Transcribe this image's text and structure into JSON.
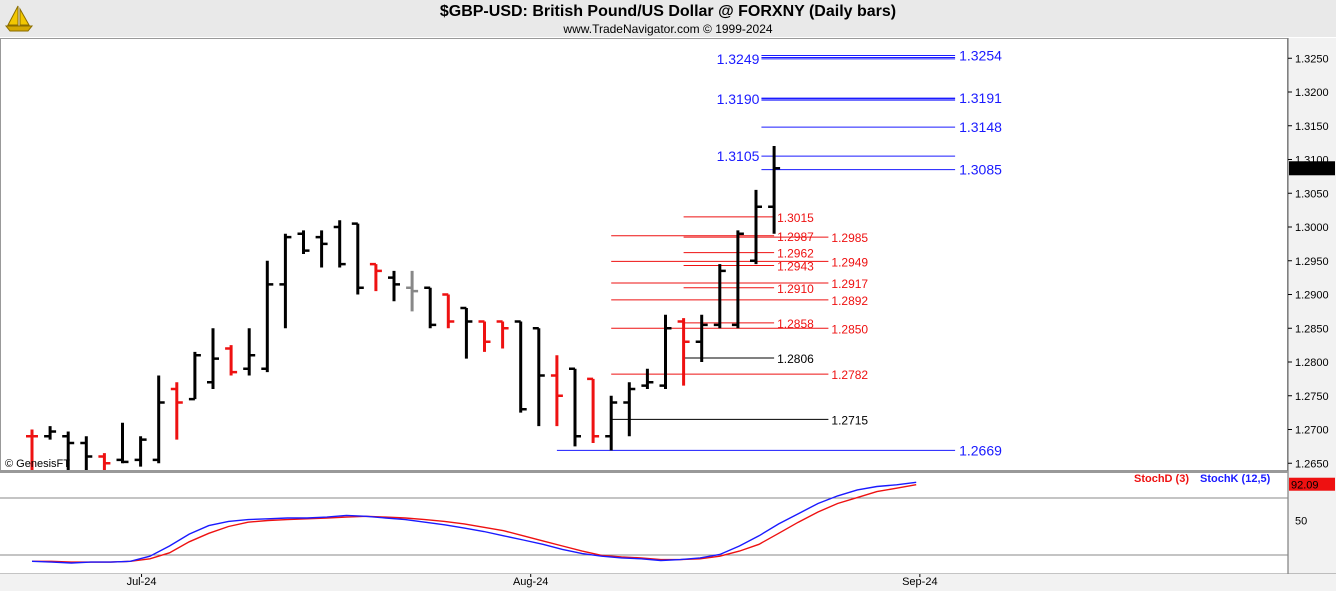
{
  "header": {
    "title": "$GBP-USD:  British Pound/US Dollar @ FORXNY  (Daily bars)",
    "subtitle": "www.TradeNavigator.com © 1999-2024"
  },
  "watermark": "© GenesisFT",
  "colors": {
    "up": "#000000",
    "down": "#ee1111",
    "neutral": "#888888",
    "blue": "#1a1aff",
    "stochD": "#ee1111",
    "stochK": "#1a1aff"
  },
  "chart_data": [
    {
      "type": "ohlc",
      "ylim": [
        1.264,
        1.328
      ],
      "yticks": [
        "1.2650",
        "1.2700",
        "1.2750",
        "1.2800",
        "1.2850",
        "1.2900",
        "1.2950",
        "1.3000",
        "1.3050",
        "1.3100",
        "1.3150",
        "1.3200",
        "1.3250"
      ],
      "xticks": [
        {
          "label": "Jul-24",
          "index": 5.5
        },
        {
          "label": "Aug-24",
          "index": 27
        },
        {
          "label": "Sep-24",
          "index": 48.5
        }
      ],
      "last_price": "1.3087",
      "bars": [
        {
          "o": 1.269,
          "h": 1.27,
          "l": 1.264,
          "c": 1.269,
          "color": "down"
        },
        {
          "o": 1.269,
          "h": 1.2705,
          "l": 1.2685,
          "c": 1.2697,
          "color": "up"
        },
        {
          "o": 1.269,
          "h": 1.2697,
          "l": 1.264,
          "c": 1.268,
          "color": "up"
        },
        {
          "o": 1.268,
          "h": 1.269,
          "l": 1.264,
          "c": 1.266,
          "color": "up"
        },
        {
          "o": 1.266,
          "h": 1.2665,
          "l": 1.264,
          "c": 1.265,
          "color": "down"
        },
        {
          "o": 1.2655,
          "h": 1.271,
          "l": 1.265,
          "c": 1.2652,
          "color": "up"
        },
        {
          "o": 1.2655,
          "h": 1.269,
          "l": 1.2645,
          "c": 1.2685,
          "color": "up"
        },
        {
          "o": 1.2655,
          "h": 1.278,
          "l": 1.265,
          "c": 1.274,
          "color": "up"
        },
        {
          "o": 1.276,
          "h": 1.277,
          "l": 1.2685,
          "c": 1.274,
          "color": "down"
        },
        {
          "o": 1.2745,
          "h": 1.2815,
          "l": 1.2745,
          "c": 1.281,
          "color": "up"
        },
        {
          "o": 1.277,
          "h": 1.285,
          "l": 1.276,
          "c": 1.2805,
          "color": "up"
        },
        {
          "o": 1.282,
          "h": 1.2825,
          "l": 1.278,
          "c": 1.2785,
          "color": "down"
        },
        {
          "o": 1.279,
          "h": 1.285,
          "l": 1.278,
          "c": 1.281,
          "color": "up"
        },
        {
          "o": 1.279,
          "h": 1.295,
          "l": 1.2785,
          "c": 1.2915,
          "color": "up"
        },
        {
          "o": 1.2915,
          "h": 1.299,
          "l": 1.285,
          "c": 1.2985,
          "color": "up"
        },
        {
          "o": 1.299,
          "h": 1.2995,
          "l": 1.296,
          "c": 1.2965,
          "color": "up"
        },
        {
          "o": 1.2985,
          "h": 1.2995,
          "l": 1.294,
          "c": 1.2975,
          "color": "up"
        },
        {
          "o": 1.3,
          "h": 1.301,
          "l": 1.294,
          "c": 1.2945,
          "color": "up"
        },
        {
          "o": 1.3005,
          "h": 1.3005,
          "l": 1.29,
          "c": 1.291,
          "color": "up"
        },
        {
          "o": 1.2945,
          "h": 1.2945,
          "l": 1.2905,
          "c": 1.2935,
          "color": "down"
        },
        {
          "o": 1.2925,
          "h": 1.2935,
          "l": 1.289,
          "c": 1.2915,
          "color": "up"
        },
        {
          "o": 1.291,
          "h": 1.2935,
          "l": 1.2875,
          "c": 1.2905,
          "color": "neutral"
        },
        {
          "o": 1.291,
          "h": 1.291,
          "l": 1.285,
          "c": 1.2855,
          "color": "up"
        },
        {
          "o": 1.29,
          "h": 1.29,
          "l": 1.285,
          "c": 1.286,
          "color": "down"
        },
        {
          "o": 1.288,
          "h": 1.288,
          "l": 1.2805,
          "c": 1.286,
          "color": "up"
        },
        {
          "o": 1.286,
          "h": 1.286,
          "l": 1.2815,
          "c": 1.283,
          "color": "down"
        },
        {
          "o": 1.286,
          "h": 1.286,
          "l": 1.282,
          "c": 1.285,
          "color": "down"
        },
        {
          "o": 1.286,
          "h": 1.286,
          "l": 1.2725,
          "c": 1.273,
          "color": "up"
        },
        {
          "o": 1.285,
          "h": 1.285,
          "l": 1.2705,
          "c": 1.278,
          "color": "up"
        },
        {
          "o": 1.278,
          "h": 1.281,
          "l": 1.2705,
          "c": 1.275,
          "color": "down"
        },
        {
          "o": 1.279,
          "h": 1.279,
          "l": 1.2675,
          "c": 1.269,
          "color": "up"
        },
        {
          "o": 1.2775,
          "h": 1.2775,
          "l": 1.268,
          "c": 1.269,
          "color": "down"
        },
        {
          "o": 1.269,
          "h": 1.275,
          "l": 1.2669,
          "c": 1.274,
          "color": "up"
        },
        {
          "o": 1.274,
          "h": 1.277,
          "l": 1.269,
          "c": 1.276,
          "color": "up"
        },
        {
          "o": 1.2765,
          "h": 1.279,
          "l": 1.276,
          "c": 1.277,
          "color": "up"
        },
        {
          "o": 1.2765,
          "h": 1.287,
          "l": 1.276,
          "c": 1.285,
          "color": "up"
        },
        {
          "o": 1.286,
          "h": 1.2865,
          "l": 1.2765,
          "c": 1.283,
          "color": "down"
        },
        {
          "o": 1.283,
          "h": 1.287,
          "l": 1.28,
          "c": 1.2855,
          "color": "up"
        },
        {
          "o": 1.2855,
          "h": 1.2945,
          "l": 1.285,
          "c": 1.2935,
          "color": "up"
        },
        {
          "o": 1.2855,
          "h": 1.2995,
          "l": 1.285,
          "c": 1.299,
          "color": "up"
        },
        {
          "o": 1.295,
          "h": 1.3055,
          "l": 1.2945,
          "c": 1.303,
          "color": "up"
        },
        {
          "o": 1.303,
          "h": 1.312,
          "l": 1.299,
          "c": 1.3087,
          "color": "up"
        }
      ],
      "levels": [
        {
          "value": 1.3254,
          "label": "1.3254",
          "color": "blue",
          "from": 40.3,
          "to": 51.0,
          "side": "right",
          "big": true,
          "double": true
        },
        {
          "value": 1.3249,
          "label": "1.3249",
          "color": "blue",
          "from": 40.3,
          "to": 51.0,
          "side": "left",
          "big": true,
          "double": false
        },
        {
          "value": 1.3191,
          "label": "1.3191",
          "color": "blue",
          "from": 40.3,
          "to": 51.0,
          "side": "right",
          "big": true,
          "double": true
        },
        {
          "value": 1.319,
          "label": "1.3190",
          "color": "blue",
          "from": 40.3,
          "to": 51.0,
          "side": "left",
          "big": true,
          "double": false
        },
        {
          "value": 1.3148,
          "label": "1.3148",
          "color": "blue",
          "from": 40.3,
          "to": 51.0,
          "side": "right",
          "big": true,
          "double": false
        },
        {
          "value": 1.3105,
          "label": "1.3105",
          "color": "blue",
          "from": 40.3,
          "to": 51.0,
          "side": "left",
          "big": true,
          "double": false
        },
        {
          "value": 1.3085,
          "label": "1.3085",
          "color": "blue",
          "from": 40.3,
          "to": 51.0,
          "side": "right",
          "big": true,
          "double": false
        },
        {
          "value": 1.3015,
          "label": "1.3015",
          "color": "down",
          "from": 36.0,
          "to": 41.0,
          "side": "right",
          "big": false,
          "double": false
        },
        {
          "value": 1.2987,
          "label": "1.2987",
          "color": "down",
          "from": 32.0,
          "to": 41.0,
          "side": "right",
          "big": false,
          "double": false
        },
        {
          "value": 1.2985,
          "label": "1.2985",
          "color": "down",
          "from": 36.0,
          "to": 44.0,
          "side": "right",
          "big": false,
          "double": false
        },
        {
          "value": 1.2962,
          "label": "1.2962",
          "color": "down",
          "from": 36.0,
          "to": 41.0,
          "side": "right",
          "big": false,
          "double": false
        },
        {
          "value": 1.2949,
          "label": "1.2949",
          "color": "down",
          "from": 32.0,
          "to": 44.0,
          "side": "right",
          "big": false,
          "double": false
        },
        {
          "value": 1.2943,
          "label": "1.2943",
          "color": "down",
          "from": 36.0,
          "to": 41.0,
          "side": "right",
          "big": false,
          "double": false
        },
        {
          "value": 1.2917,
          "label": "1.2917",
          "color": "down",
          "from": 32.0,
          "to": 44.0,
          "side": "right",
          "big": false,
          "double": false
        },
        {
          "value": 1.291,
          "label": "1.2910",
          "color": "down",
          "from": 36.0,
          "to": 41.0,
          "side": "right",
          "big": false,
          "double": false
        },
        {
          "value": 1.2892,
          "label": "1.2892",
          "color": "down",
          "from": 32.0,
          "to": 44.0,
          "side": "right",
          "big": false,
          "double": false
        },
        {
          "value": 1.2858,
          "label": "1.2858",
          "color": "down",
          "from": 36.0,
          "to": 41.0,
          "side": "right",
          "big": false,
          "double": false
        },
        {
          "value": 1.285,
          "label": "1.2850",
          "color": "down",
          "from": 32.0,
          "to": 44.0,
          "side": "right",
          "big": false,
          "double": false
        },
        {
          "value": 1.2806,
          "label": "1.2806",
          "color": "up",
          "from": 36.0,
          "to": 41.0,
          "side": "right",
          "big": false,
          "double": false
        },
        {
          "value": 1.2782,
          "label": "1.2782",
          "color": "down",
          "from": 32.0,
          "to": 44.0,
          "side": "right",
          "big": false,
          "double": false
        },
        {
          "value": 1.2715,
          "label": "1.2715",
          "color": "up",
          "from": 32.0,
          "to": 44.0,
          "side": "right",
          "big": false,
          "double": false
        },
        {
          "value": 1.2669,
          "label": "1.2669",
          "color": "blue",
          "from": 29.0,
          "to": 51.0,
          "side": "right",
          "big": true,
          "double": false
        }
      ]
    },
    {
      "type": "line",
      "ylim": [
        0,
        100
      ],
      "yticks": [
        "50"
      ],
      "last_value": "92.09",
      "series": [
        {
          "name": "StochD (3)",
          "color": "down",
          "values": [
            2,
            2,
            1,
            1,
            1,
            2,
            5,
            12,
            25,
            35,
            43,
            48,
            50,
            51,
            52,
            53,
            54,
            55,
            54,
            53,
            51,
            49,
            46,
            42,
            38,
            32,
            26,
            20,
            14,
            9,
            7,
            6,
            4,
            4,
            5,
            8,
            14,
            22,
            35,
            48,
            60,
            70,
            77,
            84,
            88,
            92.09
          ]
        },
        {
          "name": "StochK (12,5)",
          "color": "up",
          "values": [
            2,
            1,
            0,
            1,
            1,
            2,
            8,
            20,
            34,
            44,
            49,
            51,
            52,
            53,
            53,
            54,
            56,
            55,
            53,
            51,
            48,
            45,
            41,
            37,
            32,
            27,
            22,
            16,
            11,
            8,
            6,
            5,
            3,
            4,
            6,
            10,
            20,
            32,
            46,
            58,
            70,
            79,
            86,
            90,
            92,
            95
          ]
        }
      ]
    }
  ]
}
